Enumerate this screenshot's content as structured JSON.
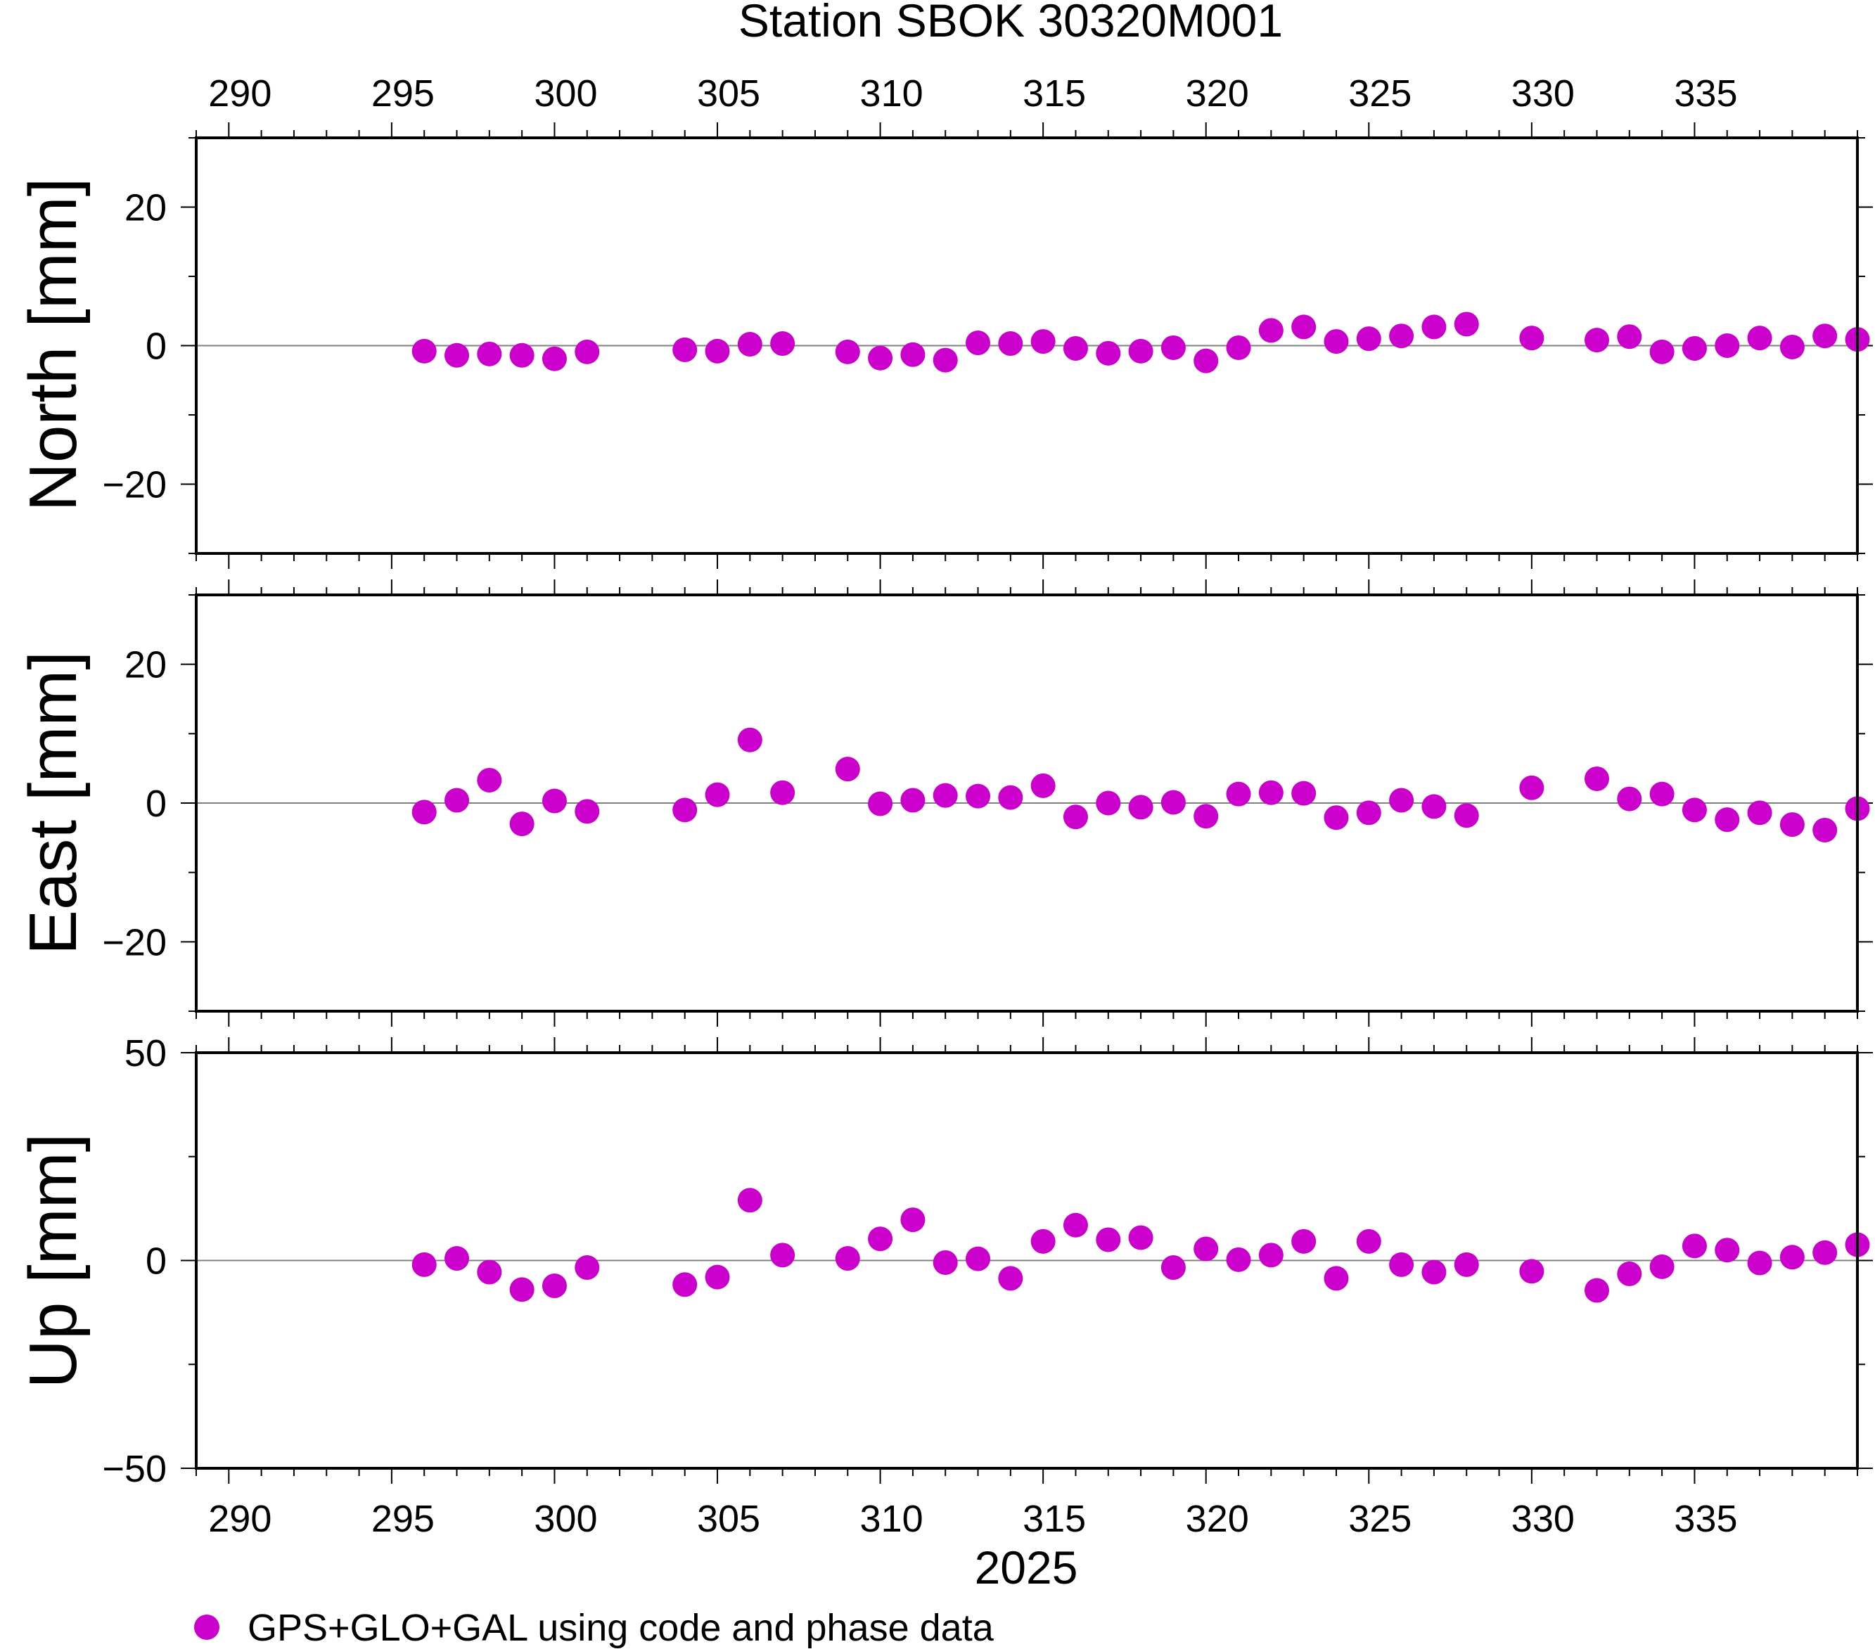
{
  "title": "Station SBOK 30320M001",
  "x_axis_label": "2025",
  "legend_label": "GPS+GLO+GAL using code and phase data",
  "colors": {
    "marker": "#cc00cc",
    "frame": "#000000",
    "zero_line": "#808080"
  },
  "chart_data": {
    "type": "scatter",
    "xlim": [
      289,
      340
    ],
    "x_ticks": [
      290,
      295,
      300,
      305,
      310,
      315,
      320,
      325,
      330,
      335
    ],
    "x_tick_labels": [
      "290",
      "295",
      "300",
      "305",
      "310",
      "315",
      "320",
      "325",
      "330",
      "335"
    ],
    "x": [
      296,
      297,
      298,
      299,
      300,
      301,
      304,
      305,
      306,
      307,
      309,
      310,
      311,
      312,
      313,
      314,
      315,
      316,
      317,
      318,
      319,
      320,
      321,
      322,
      323,
      324,
      325,
      326,
      327,
      328,
      330,
      332,
      333,
      334,
      335,
      336,
      337,
      338,
      339,
      340
    ],
    "panels": [
      {
        "name": "North",
        "ylabel": "North [mm]",
        "ylim": [
          -30,
          30
        ],
        "y_ticks": [
          20,
          0,
          -20
        ],
        "y_tick_labels": [
          "20",
          "0",
          "−20"
        ],
        "values": [
          -0.8,
          -1.4,
          -1.2,
          -1.4,
          -1.9,
          -0.9,
          -0.6,
          -0.8,
          0.2,
          0.3,
          -0.9,
          -1.8,
          -1.3,
          -2.1,
          0.4,
          0.3,
          0.6,
          -0.4,
          -1.1,
          -0.8,
          -0.3,
          -2.2,
          -0.3,
          2.2,
          2.7,
          0.6,
          1.0,
          1.4,
          2.7,
          3.1,
          1.1,
          0.8,
          1.3,
          -0.9,
          -0.4,
          0.0,
          1.1,
          -0.2,
          1.4,
          0.9
        ]
      },
      {
        "name": "East",
        "ylabel": "East [mm]",
        "ylim": [
          -30,
          30
        ],
        "y_ticks": [
          20,
          0,
          -20
        ],
        "y_tick_labels": [
          "20",
          "0",
          "−20"
        ],
        "values": [
          -1.3,
          0.4,
          3.3,
          -3.0,
          0.3,
          -1.2,
          -1.0,
          1.2,
          9.1,
          1.5,
          4.9,
          -0.1,
          0.4,
          1.1,
          1.0,
          0.8,
          2.5,
          -2.0,
          0.0,
          -0.6,
          0.1,
          -1.9,
          1.3,
          1.5,
          1.4,
          -2.1,
          -1.4,
          0.4,
          -0.5,
          -1.8,
          2.2,
          3.5,
          0.6,
          1.3,
          -1.0,
          -2.4,
          -1.4,
          -3.1,
          -3.9,
          -0.8
        ]
      },
      {
        "name": "Up",
        "ylabel": "Up [mm]",
        "ylim": [
          -50,
          50
        ],
        "y_ticks": [
          50,
          0,
          -50
        ],
        "y_tick_labels": [
          "50",
          "0",
          "−50"
        ],
        "values": [
          -1.0,
          0.5,
          -2.8,
          -7.0,
          -6.1,
          -1.7,
          -5.8,
          -4.0,
          14.5,
          1.3,
          0.5,
          5.2,
          9.8,
          -0.5,
          0.4,
          -4.3,
          4.6,
          8.5,
          5.0,
          5.5,
          -1.7,
          2.8,
          0.2,
          1.3,
          4.6,
          -4.3,
          4.6,
          -1.0,
          -2.8,
          -1.0,
          -2.6,
          -7.2,
          -3.2,
          -1.5,
          3.5,
          2.5,
          -0.6,
          0.8,
          1.9,
          3.8
        ]
      }
    ]
  }
}
